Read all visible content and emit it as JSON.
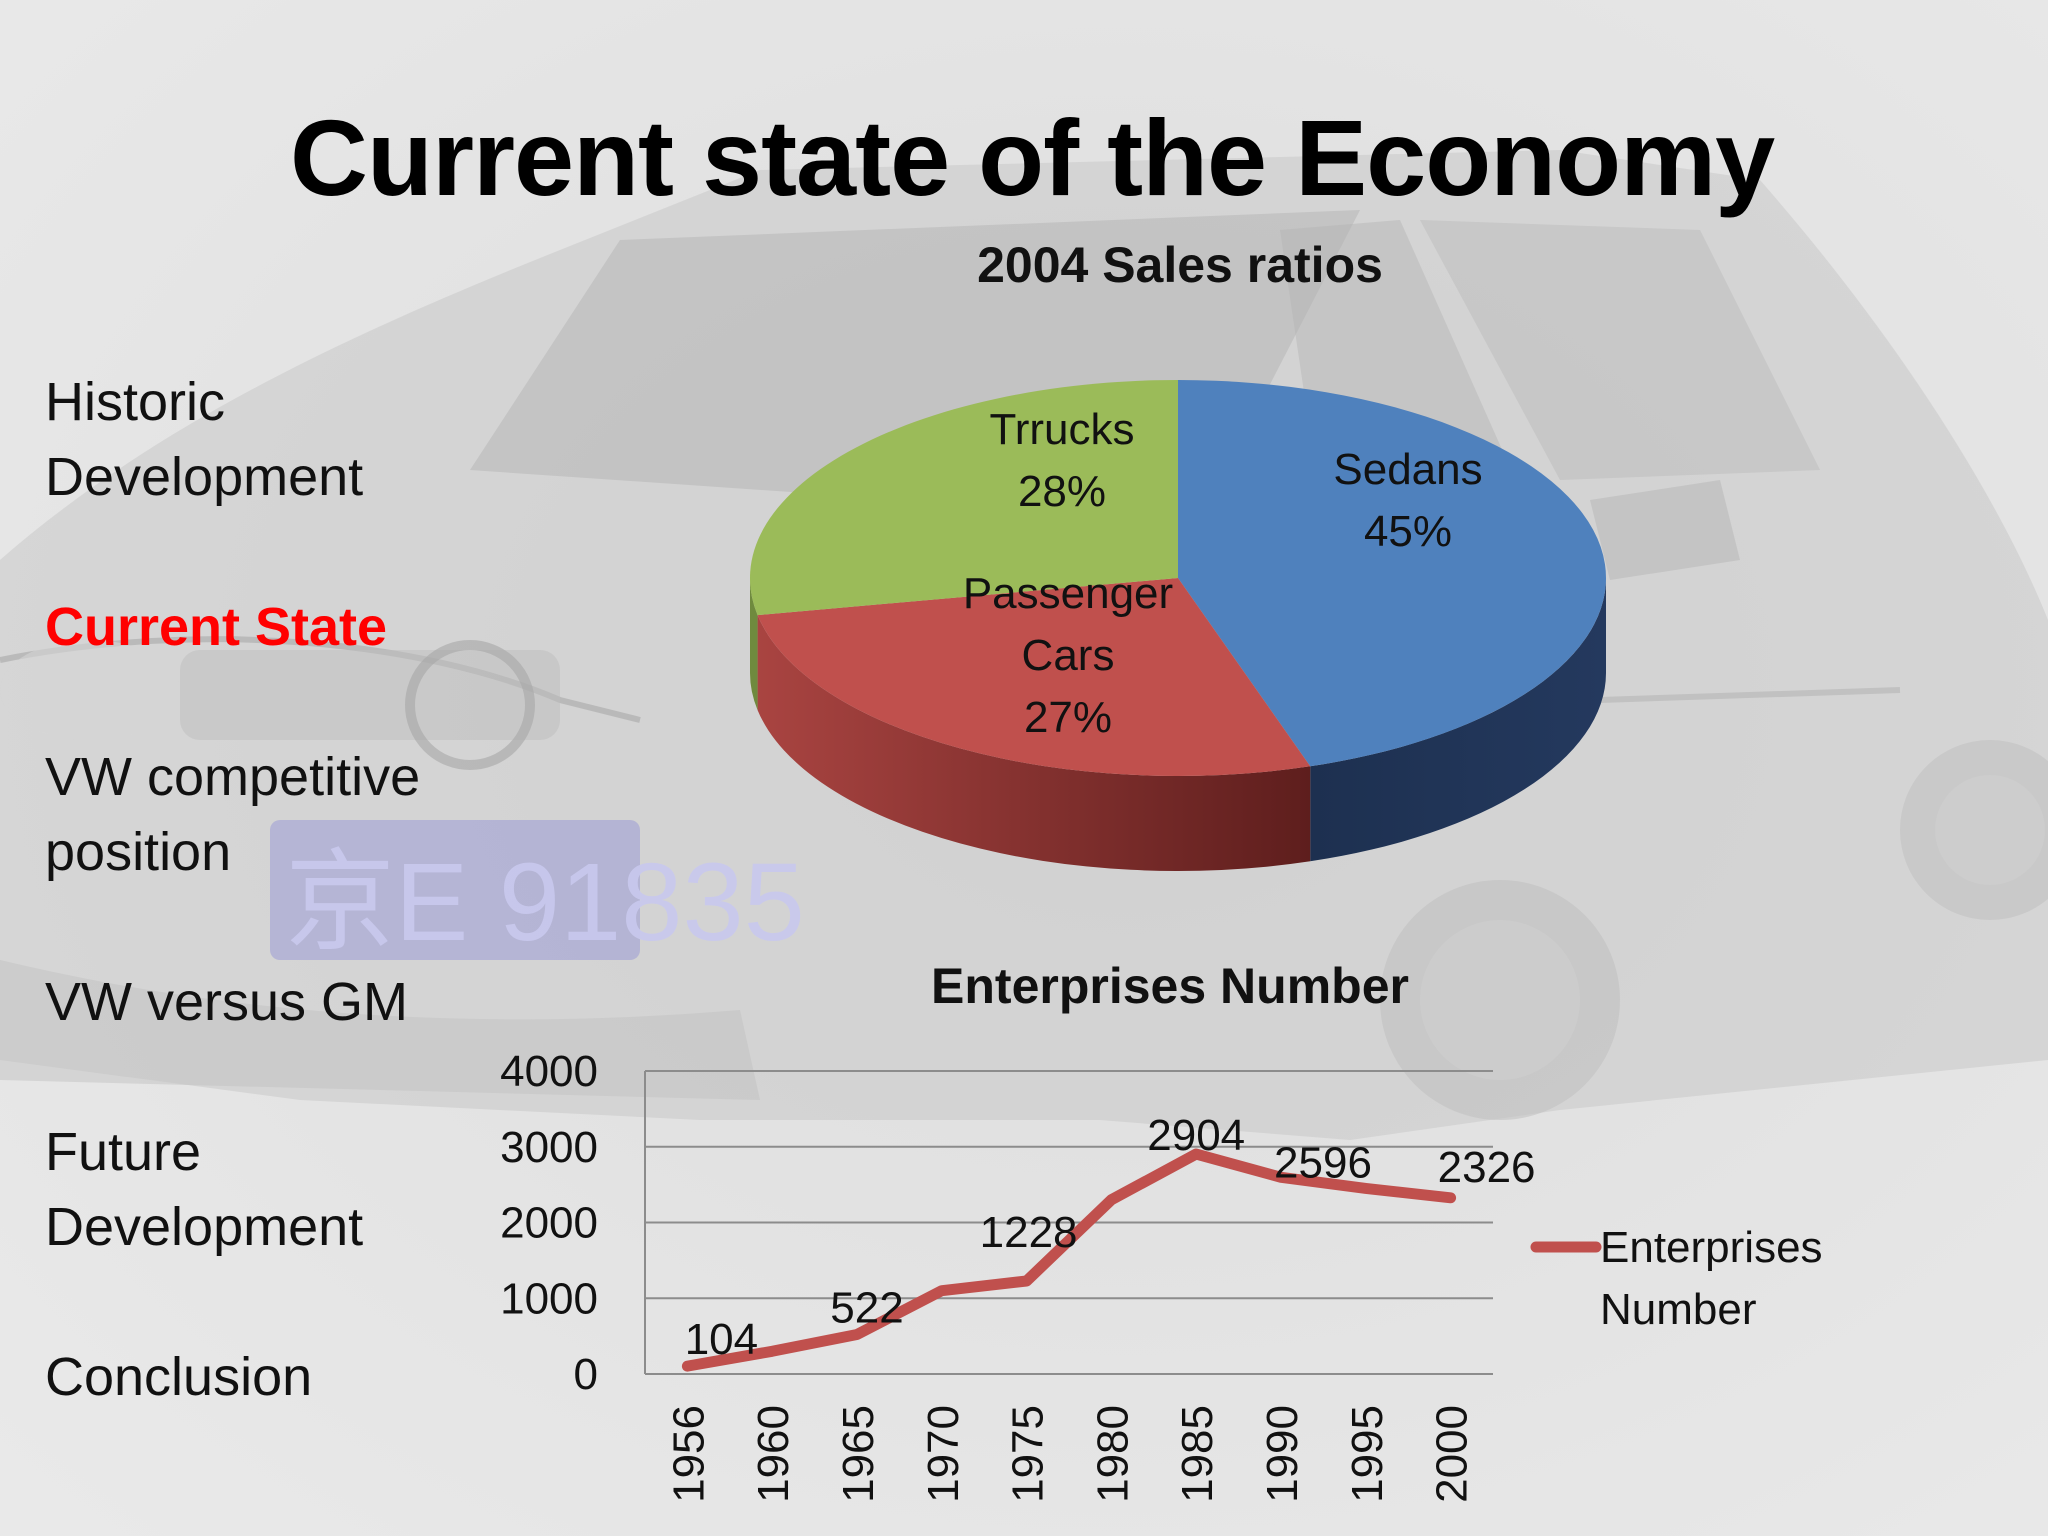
{
  "slide": {
    "title": "Current state of the Economy",
    "background_plate_text": "京E 91835"
  },
  "nav": {
    "items": [
      {
        "label": "Historic\nDevelopment",
        "active": false
      },
      {
        "label": "Current State",
        "active": true
      },
      {
        "label": "VW competitive\nposition",
        "active": false
      },
      {
        "label": "VW versus GM",
        "active": false
      },
      {
        "label": "Future\nDevelopment",
        "active": false
      },
      {
        "label": "Conclusion",
        "active": false
      }
    ]
  },
  "chart_data": [
    {
      "type": "pie",
      "title": "2004 Sales ratios",
      "three_d": true,
      "slices": [
        {
          "label": "Sedans",
          "value": 45,
          "pct_label": "45%",
          "color": "#4f81bd"
        },
        {
          "label": "Passenger\nCars",
          "value": 27,
          "pct_label": "27%",
          "color": "#c0504d"
        },
        {
          "label": "Trrucks",
          "value": 28,
          "pct_label": "28%",
          "color": "#9bbb59"
        }
      ]
    },
    {
      "type": "line",
      "title": "Enterprises Number",
      "categories": [
        "1956",
        "1960",
        "1965",
        "1970",
        "1975",
        "1980",
        "1985",
        "1990",
        "1995",
        "2000"
      ],
      "series": [
        {
          "name": "Enterprises\nNumber",
          "color": "#c0504d",
          "values": [
            104,
            300,
            522,
            1100,
            1228,
            2300,
            2904,
            2596,
            2450,
            2326
          ]
        }
      ],
      "data_labels": [
        {
          "index": 0,
          "text": "104"
        },
        {
          "index": 2,
          "text": "522"
        },
        {
          "index": 4,
          "text": "1228"
        },
        {
          "index": 6,
          "text": "2904"
        },
        {
          "index": 7,
          "text": "2596"
        },
        {
          "index": 9,
          "text": "2326"
        }
      ],
      "ylim": [
        0,
        4000
      ],
      "yticks": [
        0,
        1000,
        2000,
        3000,
        4000
      ],
      "grid": true,
      "legend": "right"
    }
  ]
}
